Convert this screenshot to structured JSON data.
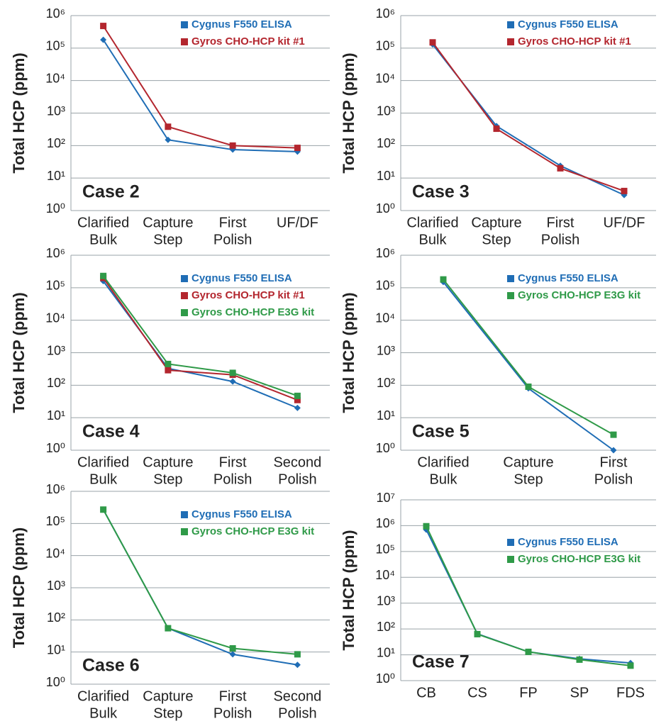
{
  "chart_data": [
    {
      "type": "line",
      "log_y": true,
      "grid": true,
      "legend": "upper right",
      "annotation": "Case 2",
      "ylabel": "Total HCP (ppm)",
      "categories": [
        [
          "Clarified",
          "Bulk"
        ],
        [
          "Capture",
          "Step"
        ],
        [
          "First",
          "Polish"
        ],
        [
          "UF/DF"
        ]
      ],
      "ylim": [
        1,
        1000000
      ],
      "yticks": [
        {
          "value": 1,
          "label": "10⁰"
        },
        {
          "value": 10,
          "label": "10¹"
        },
        {
          "value": 100,
          "label": "10²"
        },
        {
          "value": 1000,
          "label": "10³"
        },
        {
          "value": 10000,
          "label": "10⁴"
        },
        {
          "value": 100000,
          "label": "10⁵"
        },
        {
          "value": 1000000,
          "label": "10⁶"
        }
      ],
      "series": [
        {
          "name": "Cygnus F550 ELISA",
          "color": "#1f6db5",
          "marker": "diamond",
          "values": [
            180000,
            150,
            75,
            65
          ]
        },
        {
          "name": "Gyros CHO-HCP kit #1",
          "color": "#b3262e",
          "marker": "square",
          "values": [
            480000,
            380,
            100,
            85
          ]
        }
      ]
    },
    {
      "type": "line",
      "log_y": true,
      "grid": true,
      "legend": "upper right",
      "annotation": "Case 3",
      "ylabel": "Total HCP (ppm)",
      "categories": [
        [
          "Clarified",
          "Bulk"
        ],
        [
          "Capture",
          "Step"
        ],
        [
          "First",
          "Polish"
        ],
        [
          "UF/DF"
        ]
      ],
      "ylim": [
        1,
        1000000
      ],
      "yticks": [
        {
          "value": 1,
          "label": "10⁰"
        },
        {
          "value": 10,
          "label": "10¹"
        },
        {
          "value": 100,
          "label": "10²"
        },
        {
          "value": 1000,
          "label": "10³"
        },
        {
          "value": 10000,
          "label": "10⁴"
        },
        {
          "value": 100000,
          "label": "10⁵"
        },
        {
          "value": 1000000,
          "label": "10⁶"
        }
      ],
      "series": [
        {
          "name": "Cygnus F550 ELISA",
          "color": "#1f6db5",
          "marker": "diamond",
          "values": [
            130000,
            400,
            24,
            3
          ]
        },
        {
          "name": "Gyros CHO-HCP kit #1",
          "color": "#b3262e",
          "marker": "square",
          "values": [
            150000,
            330,
            20,
            4
          ]
        }
      ]
    },
    {
      "type": "line",
      "log_y": true,
      "grid": true,
      "legend": "upper right",
      "annotation": "Case 4",
      "ylabel": "Total HCP (ppm)",
      "categories": [
        [
          "Clarified",
          "Bulk"
        ],
        [
          "Capture",
          "Step"
        ],
        [
          "First",
          "Polish"
        ],
        [
          "Second",
          "Polish"
        ]
      ],
      "ylim": [
        1,
        1000000
      ],
      "yticks": [
        {
          "value": 1,
          "label": "10⁰"
        },
        {
          "value": 10,
          "label": "10¹"
        },
        {
          "value": 100,
          "label": "10²"
        },
        {
          "value": 1000,
          "label": "10³"
        },
        {
          "value": 10000,
          "label": "10⁴"
        },
        {
          "value": 100000,
          "label": "10⁵"
        },
        {
          "value": 1000000,
          "label": "10⁶"
        }
      ],
      "series": [
        {
          "name": "Cygnus F550 ELISA",
          "color": "#1f6db5",
          "marker": "diamond",
          "values": [
            160000,
            330,
            130,
            20
          ]
        },
        {
          "name": "Gyros CHO-HCP kit #1",
          "color": "#b3262e",
          "marker": "square",
          "values": [
            200000,
            290,
            210,
            35
          ]
        },
        {
          "name": "Gyros CHO-HCP E3G kit",
          "color": "#2f9a48",
          "marker": "square",
          "values": [
            230000,
            450,
            240,
            47
          ]
        }
      ]
    },
    {
      "type": "line",
      "log_y": true,
      "grid": true,
      "legend": "upper right",
      "annotation": "Case 5",
      "ylabel": "Total HCP (ppm)",
      "categories": [
        [
          "Clarified",
          "Bulk"
        ],
        [
          "Capture",
          "Step"
        ],
        [
          "First",
          "Polish"
        ]
      ],
      "ylim": [
        1,
        1000000
      ],
      "yticks": [
        {
          "value": 1,
          "label": "10⁰"
        },
        {
          "value": 10,
          "label": "10¹"
        },
        {
          "value": 100,
          "label": "10²"
        },
        {
          "value": 1000,
          "label": "10³"
        },
        {
          "value": 10000,
          "label": "10⁴"
        },
        {
          "value": 100000,
          "label": "10⁵"
        },
        {
          "value": 1000000,
          "label": "10⁶"
        }
      ],
      "series": [
        {
          "name": "Cygnus F550 ELISA",
          "color": "#1f6db5",
          "marker": "diamond",
          "values": [
            150000,
            80,
            1
          ]
        },
        {
          "name": "Gyros CHO-HCP E3G kit",
          "color": "#2f9a48",
          "marker": "square",
          "values": [
            180000,
            90,
            3
          ]
        }
      ]
    },
    {
      "type": "line",
      "log_y": true,
      "grid": true,
      "legend": "upper right",
      "annotation": "Case 6",
      "ylabel": "Total HCP (ppm)",
      "categories": [
        [
          "Clarified",
          "Bulk"
        ],
        [
          "Capture",
          "Step"
        ],
        [
          "First",
          "Polish"
        ],
        [
          "Second",
          "Polish"
        ]
      ],
      "ylim": [
        1,
        1000000
      ],
      "yticks": [
        {
          "value": 1,
          "label": "10⁰"
        },
        {
          "value": 10,
          "label": "10¹"
        },
        {
          "value": 100,
          "label": "10²"
        },
        {
          "value": 1000,
          "label": "10³"
        },
        {
          "value": 10000,
          "label": "10⁴"
        },
        {
          "value": 100000,
          "label": "10⁵"
        },
        {
          "value": 1000000,
          "label": "10⁶"
        }
      ],
      "series": [
        {
          "name": "Cygnus F550 ELISA",
          "color": "#1f6db5",
          "marker": "diamond",
          "values": [
            270000,
            55,
            8.5,
            4
          ]
        },
        {
          "name": "Gyros CHO-HCP E3G kit",
          "color": "#2f9a48",
          "marker": "square",
          "values": [
            270000,
            55,
            13,
            8.5
          ]
        }
      ]
    },
    {
      "type": "line",
      "log_y": true,
      "grid": true,
      "legend": "upper right",
      "annotation": "Case 7",
      "ylabel": "Total HCP (ppm)",
      "categories": [
        [
          "CB"
        ],
        [
          "CS"
        ],
        [
          "FP"
        ],
        [
          "SP"
        ],
        [
          "FDS"
        ]
      ],
      "ylim": [
        1,
        10000000
      ],
      "yticks": [
        {
          "value": 1,
          "label": "10⁰"
        },
        {
          "value": 10,
          "label": "10¹"
        },
        {
          "value": 100,
          "label": "10²"
        },
        {
          "value": 1000,
          "label": "10³"
        },
        {
          "value": 10000,
          "label": "10⁴"
        },
        {
          "value": 100000,
          "label": "10⁵"
        },
        {
          "value": 1000000,
          "label": "10⁶"
        },
        {
          "value": 10000000,
          "label": "10⁷"
        }
      ],
      "series": [
        {
          "name": "Cygnus F550 ELISA",
          "color": "#1f6db5",
          "marker": "diamond",
          "values": [
            700000,
            65,
            13,
            7,
            4.8
          ]
        },
        {
          "name": "Gyros CHO-HCP E3G kit",
          "color": "#2f9a48",
          "marker": "square",
          "values": [
            950000,
            63,
            13,
            6.5,
            3.8
          ]
        }
      ]
    }
  ]
}
